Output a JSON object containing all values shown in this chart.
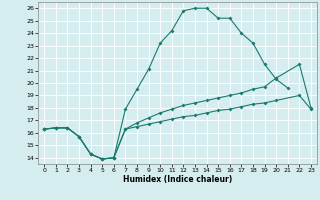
{
  "xlabel": "Humidex (Indice chaleur)",
  "background_color": "#d6edf0",
  "line_color": "#1a7a6e",
  "xlim": [
    -0.5,
    23.5
  ],
  "ylim": [
    13.5,
    26.5
  ],
  "xticks": [
    0,
    1,
    2,
    3,
    4,
    5,
    6,
    7,
    8,
    9,
    10,
    11,
    12,
    13,
    14,
    15,
    16,
    17,
    18,
    19,
    20,
    21,
    22,
    23
  ],
  "yticks": [
    14,
    15,
    16,
    17,
    18,
    19,
    20,
    21,
    22,
    23,
    24,
    25,
    26
  ],
  "line1_x": [
    0,
    1,
    2,
    3,
    4,
    5,
    6,
    7,
    8,
    9,
    10,
    11,
    12,
    13,
    14,
    15,
    16,
    17,
    18,
    19,
    20,
    21
  ],
  "line1_y": [
    16.3,
    16.4,
    16.4,
    15.7,
    14.3,
    13.9,
    14.0,
    17.9,
    19.5,
    21.1,
    23.2,
    24.2,
    25.8,
    26.0,
    26.0,
    25.2,
    25.2,
    24.0,
    23.2,
    21.5,
    20.3,
    19.6
  ],
  "line2_x": [
    0,
    1,
    2,
    3,
    4,
    5,
    6,
    7,
    8,
    9,
    10,
    11,
    12,
    13,
    14,
    15,
    16,
    17,
    18,
    19,
    20,
    22,
    23
  ],
  "line2_y": [
    16.3,
    16.4,
    16.4,
    15.7,
    14.3,
    13.9,
    14.0,
    16.3,
    16.8,
    17.2,
    17.6,
    17.9,
    18.2,
    18.4,
    18.6,
    18.8,
    19.0,
    19.2,
    19.5,
    19.7,
    20.4,
    21.5,
    18.0
  ],
  "line3_x": [
    0,
    1,
    2,
    3,
    4,
    5,
    6,
    7,
    8,
    9,
    10,
    11,
    12,
    13,
    14,
    15,
    16,
    17,
    18,
    19,
    20,
    22,
    23
  ],
  "line3_y": [
    16.3,
    16.4,
    16.4,
    15.7,
    14.3,
    13.9,
    14.0,
    16.3,
    16.5,
    16.7,
    16.9,
    17.1,
    17.3,
    17.4,
    17.6,
    17.8,
    17.9,
    18.1,
    18.3,
    18.4,
    18.6,
    19.0,
    17.9
  ]
}
